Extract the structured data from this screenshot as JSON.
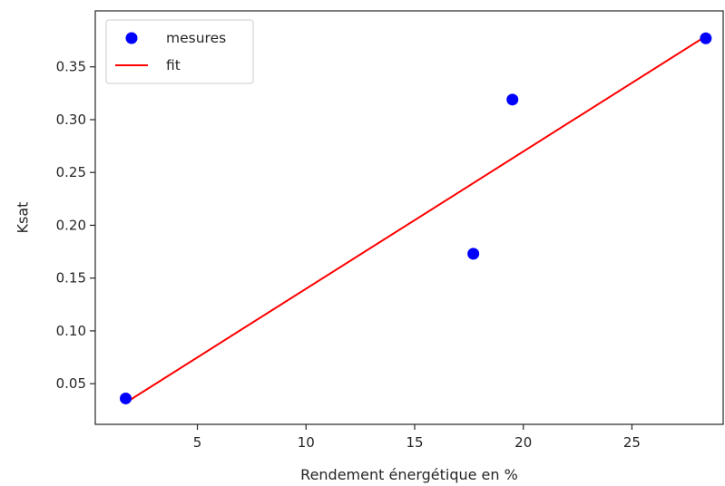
{
  "chart_data": {
    "type": "scatter",
    "title": "",
    "xlabel": "Rendement énergétique en %",
    "ylabel": "Ksat",
    "xlim": [
      0.3,
      29.2
    ],
    "ylim": [
      0.0115,
      0.403
    ],
    "xticks": [
      5,
      10,
      15,
      20,
      25
    ],
    "xtick_labels": [
      "5",
      "10",
      "15",
      "20",
      "25"
    ],
    "yticks": [
      0.05,
      0.1,
      0.15,
      0.2,
      0.25,
      0.3,
      0.35
    ],
    "ytick_labels": [
      "0.05",
      "0.10",
      "0.15",
      "0.20",
      "0.25",
      "0.30",
      "0.35"
    ],
    "grid": false,
    "legend_position": "top-left",
    "series": [
      {
        "name": "mesures",
        "kind": "scatter",
        "color": "#0000ff",
        "x": [
          1.7,
          17.7,
          19.5,
          28.4
        ],
        "y": [
          0.036,
          0.173,
          0.319,
          0.377
        ]
      },
      {
        "name": "fit",
        "kind": "line",
        "color": "#ff0000",
        "x": [
          1.7,
          28.4
        ],
        "y": [
          0.032,
          0.379
        ]
      }
    ]
  }
}
